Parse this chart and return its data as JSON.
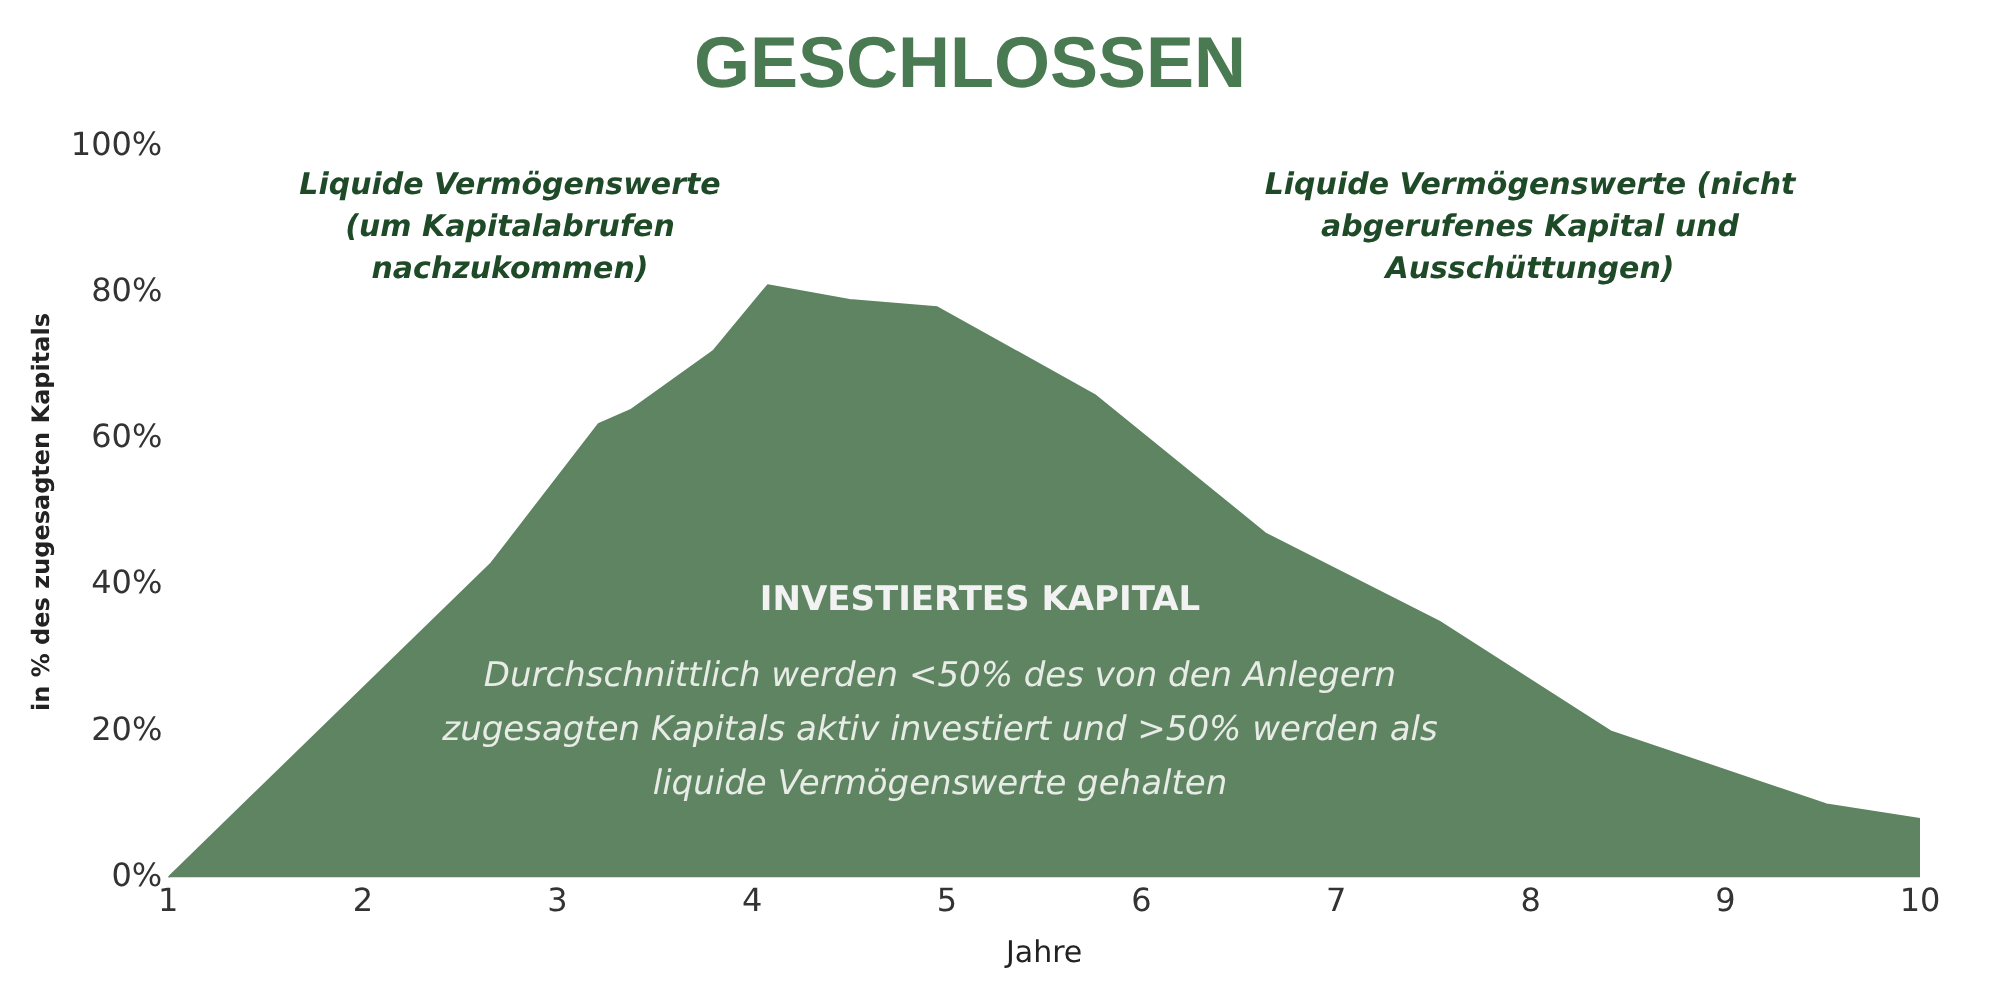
{
  "chart_data": {
    "type": "area",
    "title": "GESCHLOSSEN",
    "xlabel": "Jahre",
    "ylabel": "in % des zugesagten Kapitals",
    "x": [
      1,
      2.66,
      3.21,
      3.38,
      3.8,
      4.08,
      4.5,
      4.95,
      5.76,
      6.64,
      7.53,
      8.41,
      9.52,
      10
    ],
    "series": [
      {
        "color": "#5e8462",
        "values": [
          0,
          43,
          62,
          64,
          72,
          81,
          79,
          78,
          66,
          47,
          35,
          20,
          10,
          8
        ]
      }
    ],
    "xlim": [
      1,
      10
    ],
    "xticks": [
      1,
      2,
      3,
      4,
      5,
      6,
      7,
      8,
      9,
      10
    ],
    "ylim": [
      0,
      100
    ],
    "yticks": [
      {
        "value": 0,
        "label": "0%"
      },
      {
        "value": 20,
        "label": "20%"
      },
      {
        "value": 40,
        "label": "40%"
      },
      {
        "value": 60,
        "label": "60%"
      },
      {
        "value": 80,
        "label": "80%"
      },
      {
        "value": 100,
        "label": "100%"
      }
    ],
    "grid": false,
    "legend": false,
    "marker": "none",
    "annotations": [
      "Liquide Vermögenswerte (um Kapitalabrufen nachzukommen)",
      "Liquide Vermögenswerte (nicht abgerufenes Kapital und Ausschüttungen)",
      "INVESTIERTES KAPITAL",
      "Durchschnittlich werden <50% des von den Anlegern zugesagten Kapitals aktiv investiert und >50% werden als liquide Vermögenswerte gehalten"
    ]
  }
}
